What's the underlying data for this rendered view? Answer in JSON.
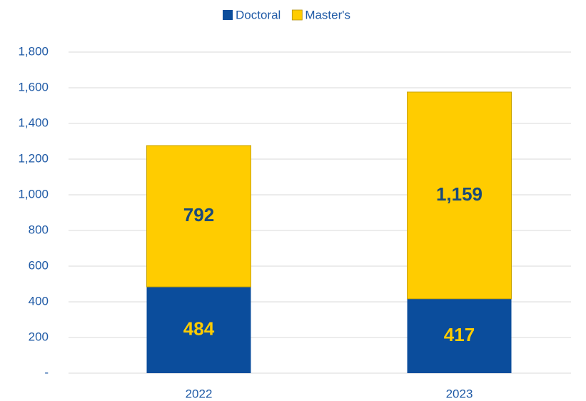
{
  "chart_data": {
    "type": "stacked_bar",
    "categories": [
      "2022",
      "2023"
    ],
    "series": [
      {
        "name": "Doctoral",
        "color": "#0b4d9c",
        "values": [
          484,
          417
        ]
      },
      {
        "name": "Master's",
        "color": "#ffcc00",
        "values": [
          792,
          1159
        ],
        "value_labels": [
          "792",
          "1,159"
        ]
      }
    ],
    "ylim": [
      0,
      1800
    ],
    "yticks": [
      {
        "value": 0,
        "label": "-"
      },
      200,
      400,
      600,
      800,
      {
        "value": 1000,
        "label": "1,000"
      },
      {
        "value": 1200,
        "label": "1,200"
      },
      {
        "value": 1400,
        "label": "1,400"
      },
      {
        "value": 1600,
        "label": "1,600"
      },
      {
        "value": 1800,
        "label": "1,800"
      }
    ],
    "grid": true,
    "legend": "top"
  }
}
